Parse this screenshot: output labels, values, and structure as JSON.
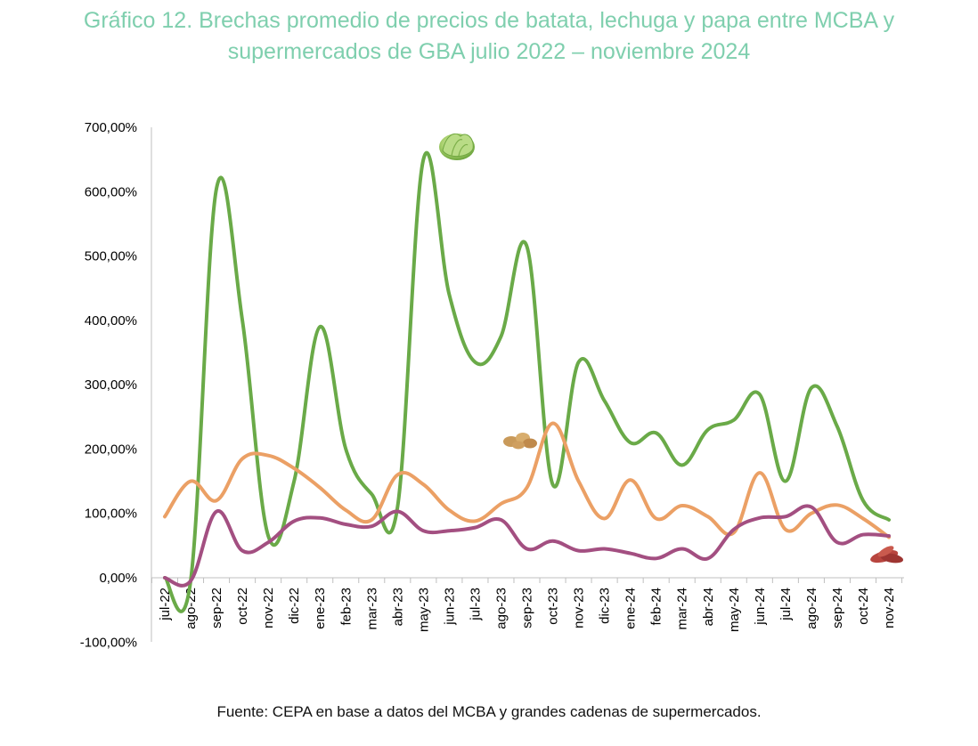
{
  "title": {
    "line1": "Gráfico 12. Brechas promedio de precios de batata, lechuga y papa entre MCBA y",
    "line2": "supermercados de GBA julio 2022 – noviembre 2024"
  },
  "source": "Fuente: CEPA en base a datos del MCBA y grandes cadenas de supermercados.",
  "chart_data": {
    "type": "line",
    "title": "Gráfico 12. Brechas promedio de precios de batata, lechuga y papa entre MCBA y supermercados de GBA julio 2022 – noviembre 2024",
    "xlabel": "",
    "ylabel": "",
    "ylim": [
      -100,
      700
    ],
    "ytick_step": 100,
    "ytick_labels": [
      "-100,00%",
      "0,00%",
      "100,00%",
      "200,00%",
      "300,00%",
      "400,00%",
      "500,00%",
      "600,00%",
      "700,00%"
    ],
    "grid": false,
    "legend": "none (series identified by vegetable images)",
    "categories": [
      "jul-22",
      "ago-22",
      "sep-22",
      "oct-22",
      "nov-22",
      "dic-22",
      "ene-23",
      "feb-23",
      "mar-23",
      "abr-23",
      "may-23",
      "jun-23",
      "jul-23",
      "ago-23",
      "sep-23",
      "oct-23",
      "nov-23",
      "dic-23",
      "ene-24",
      "feb-24",
      "mar-24",
      "abr-24",
      "may-24",
      "jun-24",
      "jul-24",
      "ago-24",
      "sep-24",
      "oct-24",
      "nov-24"
    ],
    "series": [
      {
        "name": "Lechuga",
        "icon": "lettuce-icon",
        "color": "#6aaa48",
        "values": [
          0,
          -5,
          605,
          400,
          65,
          150,
          390,
          200,
          130,
          110,
          650,
          440,
          335,
          375,
          515,
          145,
          335,
          275,
          210,
          225,
          175,
          230,
          245,
          285,
          150,
          295,
          235,
          120,
          90
        ]
      },
      {
        "name": "Papa",
        "icon": "potato-icon",
        "color": "#eba065",
        "values": [
          95,
          150,
          120,
          185,
          190,
          170,
          140,
          105,
          90,
          160,
          145,
          105,
          88,
          115,
          140,
          240,
          150,
          92,
          152,
          92,
          112,
          95,
          70,
          163,
          75,
          100,
          113,
          92,
          63
        ]
      },
      {
        "name": "Batata",
        "icon": "sweet-potato-icon",
        "color": "#a34f81",
        "values": [
          0,
          -5,
          103,
          42,
          55,
          88,
          93,
          83,
          80,
          103,
          73,
          73,
          78,
          90,
          45,
          57,
          42,
          45,
          38,
          30,
          45,
          30,
          75,
          93,
          95,
          110,
          55,
          67,
          65
        ]
      }
    ]
  }
}
